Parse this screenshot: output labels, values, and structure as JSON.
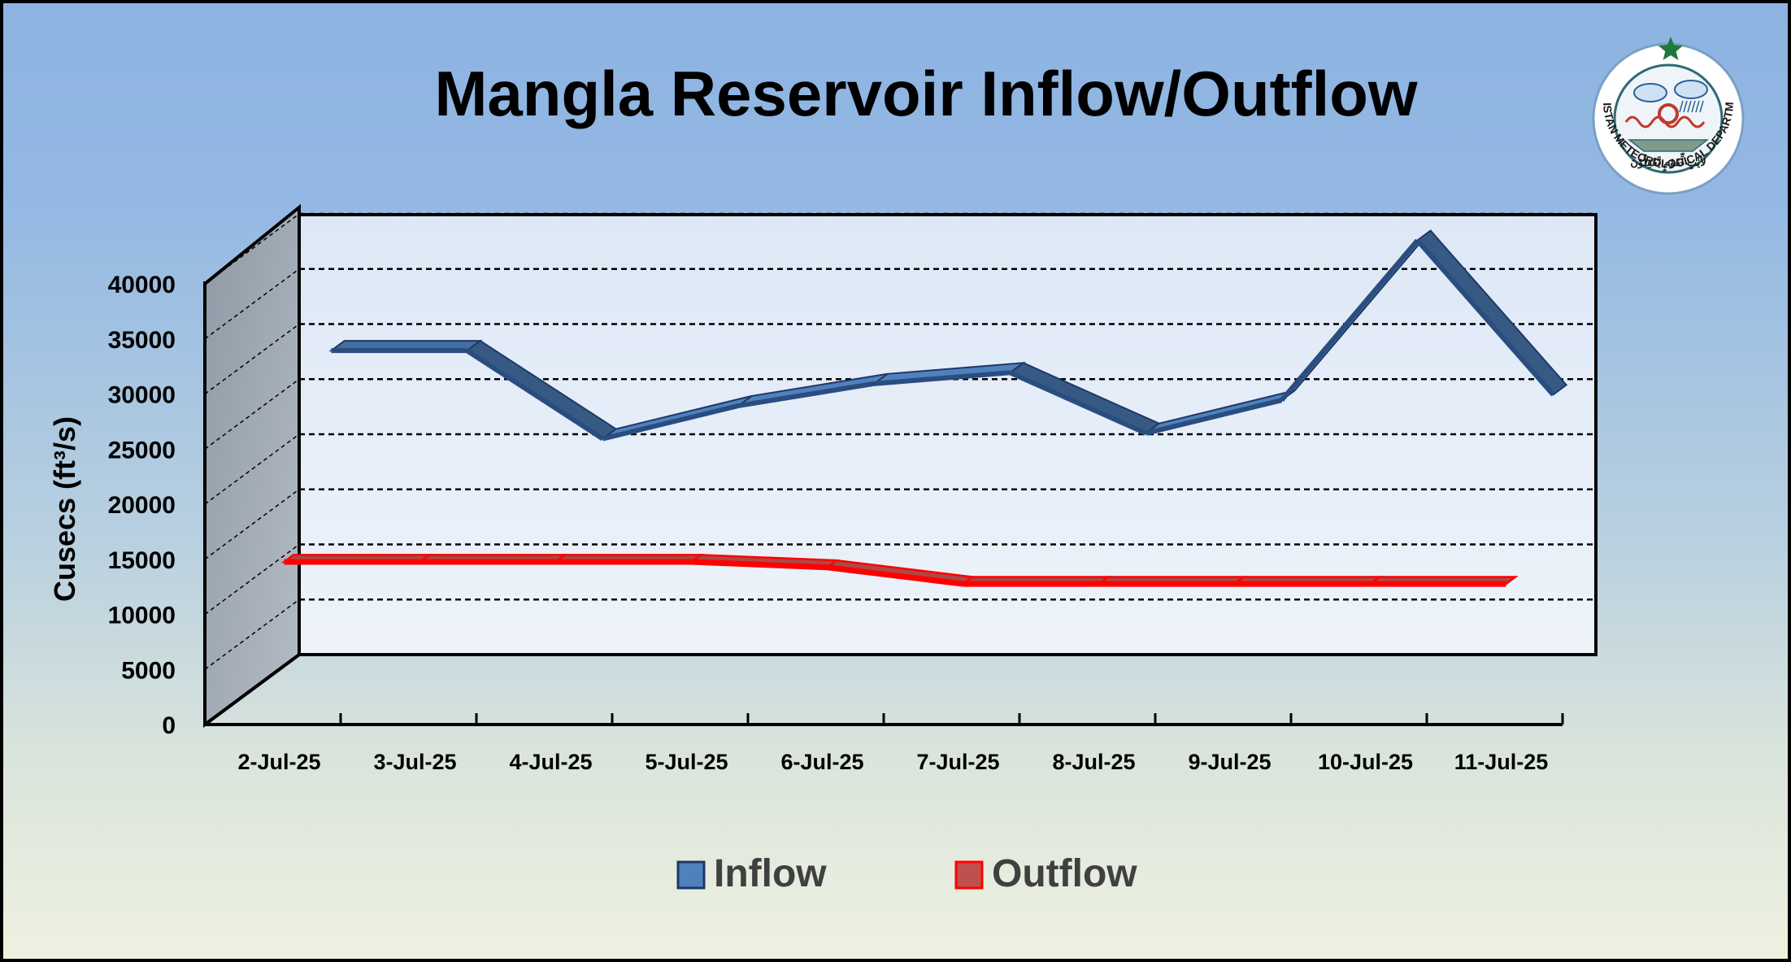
{
  "chart_data": {
    "type": "line",
    "title": "Mangla Reservoir Inflow/Outflow",
    "ylabel": "Cusecs (ft³/s)",
    "xlabel": "",
    "ylim": [
      0,
      40000
    ],
    "yticks": [
      0,
      5000,
      10000,
      15000,
      20000,
      25000,
      30000,
      35000,
      40000
    ],
    "categories": [
      "2-Jul-25",
      "3-Jul-25",
      "4-Jul-25",
      "5-Jul-25",
      "6-Jul-25",
      "7-Jul-25",
      "8-Jul-25",
      "9-Jul-25",
      "10-Jul-25",
      "11-Jul-25"
    ],
    "series": [
      {
        "name": "Inflow",
        "color": "#4f81bd",
        "values": [
          30000,
          30000,
          22000,
          25000,
          27000,
          28000,
          22500,
          25500,
          40000,
          26000
        ]
      },
      {
        "name": "Outflow",
        "color": "#c0504d",
        "values": [
          14000,
          14000,
          14000,
          14000,
          13500,
          12000,
          12000,
          12000,
          12000,
          12000
        ]
      }
    ],
    "grid": true,
    "legend": "bottom"
  },
  "logo": {
    "arc_text": "PAKISTAN METEOROLOGICAL DEPARTMENT",
    "motto": "لأيٰتٍ لِّقَوْمٍ يَّعْقِلُوْنَ"
  }
}
